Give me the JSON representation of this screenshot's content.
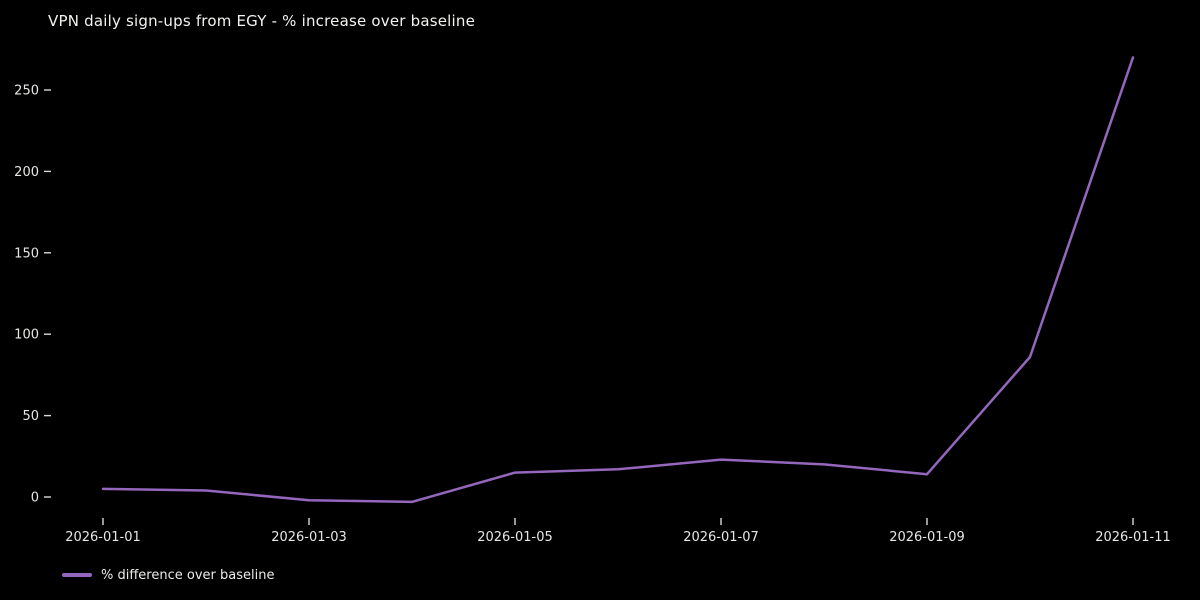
{
  "chart_data": {
    "type": "line",
    "title": "VPN daily sign-ups from EGY - % increase over baseline",
    "xlabel": "",
    "ylabel": "",
    "categories": [
      "2026-01-01",
      "2026-01-02",
      "2026-01-03",
      "2026-01-04",
      "2026-01-05",
      "2026-01-06",
      "2026-01-07",
      "2026-01-08",
      "2026-01-09",
      "2026-01-10",
      "2026-01-11"
    ],
    "series": [
      {
        "name": "% difference over baseline",
        "values": [
          5,
          4,
          -2,
          -3,
          15,
          17,
          23,
          20,
          14,
          86,
          270
        ],
        "color": "#9467bd"
      }
    ],
    "x_tick_labels": [
      "2026-01-01",
      "2026-01-03",
      "2026-01-05",
      "2026-01-07",
      "2026-01-09",
      "2026-01-11"
    ],
    "yticks": [
      0,
      50,
      100,
      150,
      200,
      250
    ],
    "ylim": [
      -17,
      284
    ],
    "grid": false,
    "legend_position": "bottom-left",
    "background_color": "#000000",
    "text_color": "#e6e6e4"
  }
}
